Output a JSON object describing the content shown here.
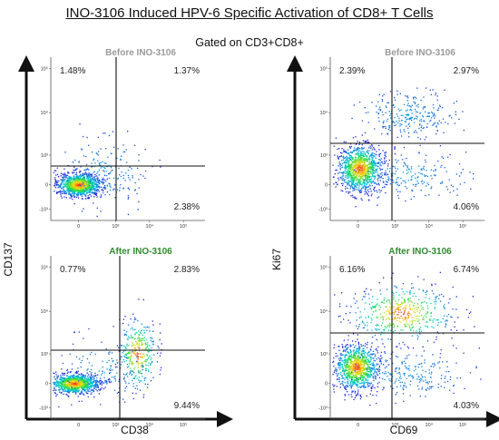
{
  "title": "INO-3106 Induced HPV-6 Specific Activation of CD8+ T Cells",
  "subtitle": "Gated on CD3+CD8+",
  "colors": {
    "before_title": "#9a9a9a",
    "after_title": "#2e8b2e",
    "axis": "#111111",
    "gate": "#111111"
  },
  "chart_data": [
    {
      "type": "scatter",
      "group": "left",
      "title": "Before INO-3106",
      "xlabel": "CD38",
      "ylabel": "CD137",
      "x_ticks": [
        "0",
        "10³",
        "10⁴",
        "10⁵"
      ],
      "y_ticks": [
        "-10³",
        "0",
        "10³",
        "10⁴",
        "10⁵"
      ],
      "quadrants": {
        "upper_left": "1.48%",
        "upper_right": "1.37%",
        "lower_right": "2.38%"
      }
    },
    {
      "type": "scatter",
      "group": "left",
      "title": "After INO-3106",
      "xlabel": "CD38",
      "ylabel": "CD137",
      "x_ticks": [
        "0",
        "10³",
        "10⁴",
        "10⁵"
      ],
      "y_ticks": [
        "-10³",
        "0",
        "10³",
        "10⁴",
        "10⁵"
      ],
      "quadrants": {
        "upper_left": "0.77%",
        "upper_right": "2.83%",
        "lower_right": "9.44%"
      }
    },
    {
      "type": "scatter",
      "group": "right",
      "title": "Before INO-3106",
      "xlabel": "CD69",
      "ylabel": "Ki67",
      "x_ticks": [
        "0",
        "10³",
        "10⁴",
        "10⁵"
      ],
      "y_ticks": [
        "-10³",
        "0",
        "10³",
        "10⁴",
        "10⁵"
      ],
      "quadrants": {
        "upper_left": "2.39%",
        "upper_right": "2.97%",
        "lower_right": "4.06%"
      }
    },
    {
      "type": "scatter",
      "group": "right",
      "title": "After INO-3106",
      "xlabel": "CD69",
      "ylabel": "Ki67",
      "x_ticks": [
        "0",
        "10³",
        "10⁴",
        "10⁵"
      ],
      "y_ticks": [
        "-10³",
        "0",
        "10³",
        "10⁴",
        "10⁵"
      ],
      "quadrants": {
        "upper_left": "6.16%",
        "upper_right": "6.74%",
        "lower_right": "4.03%"
      }
    }
  ],
  "axes": {
    "left": {
      "xlabel": "CD38",
      "ylabel": "CD137"
    },
    "right": {
      "xlabel": "CD69",
      "ylabel": "Ki67"
    }
  }
}
